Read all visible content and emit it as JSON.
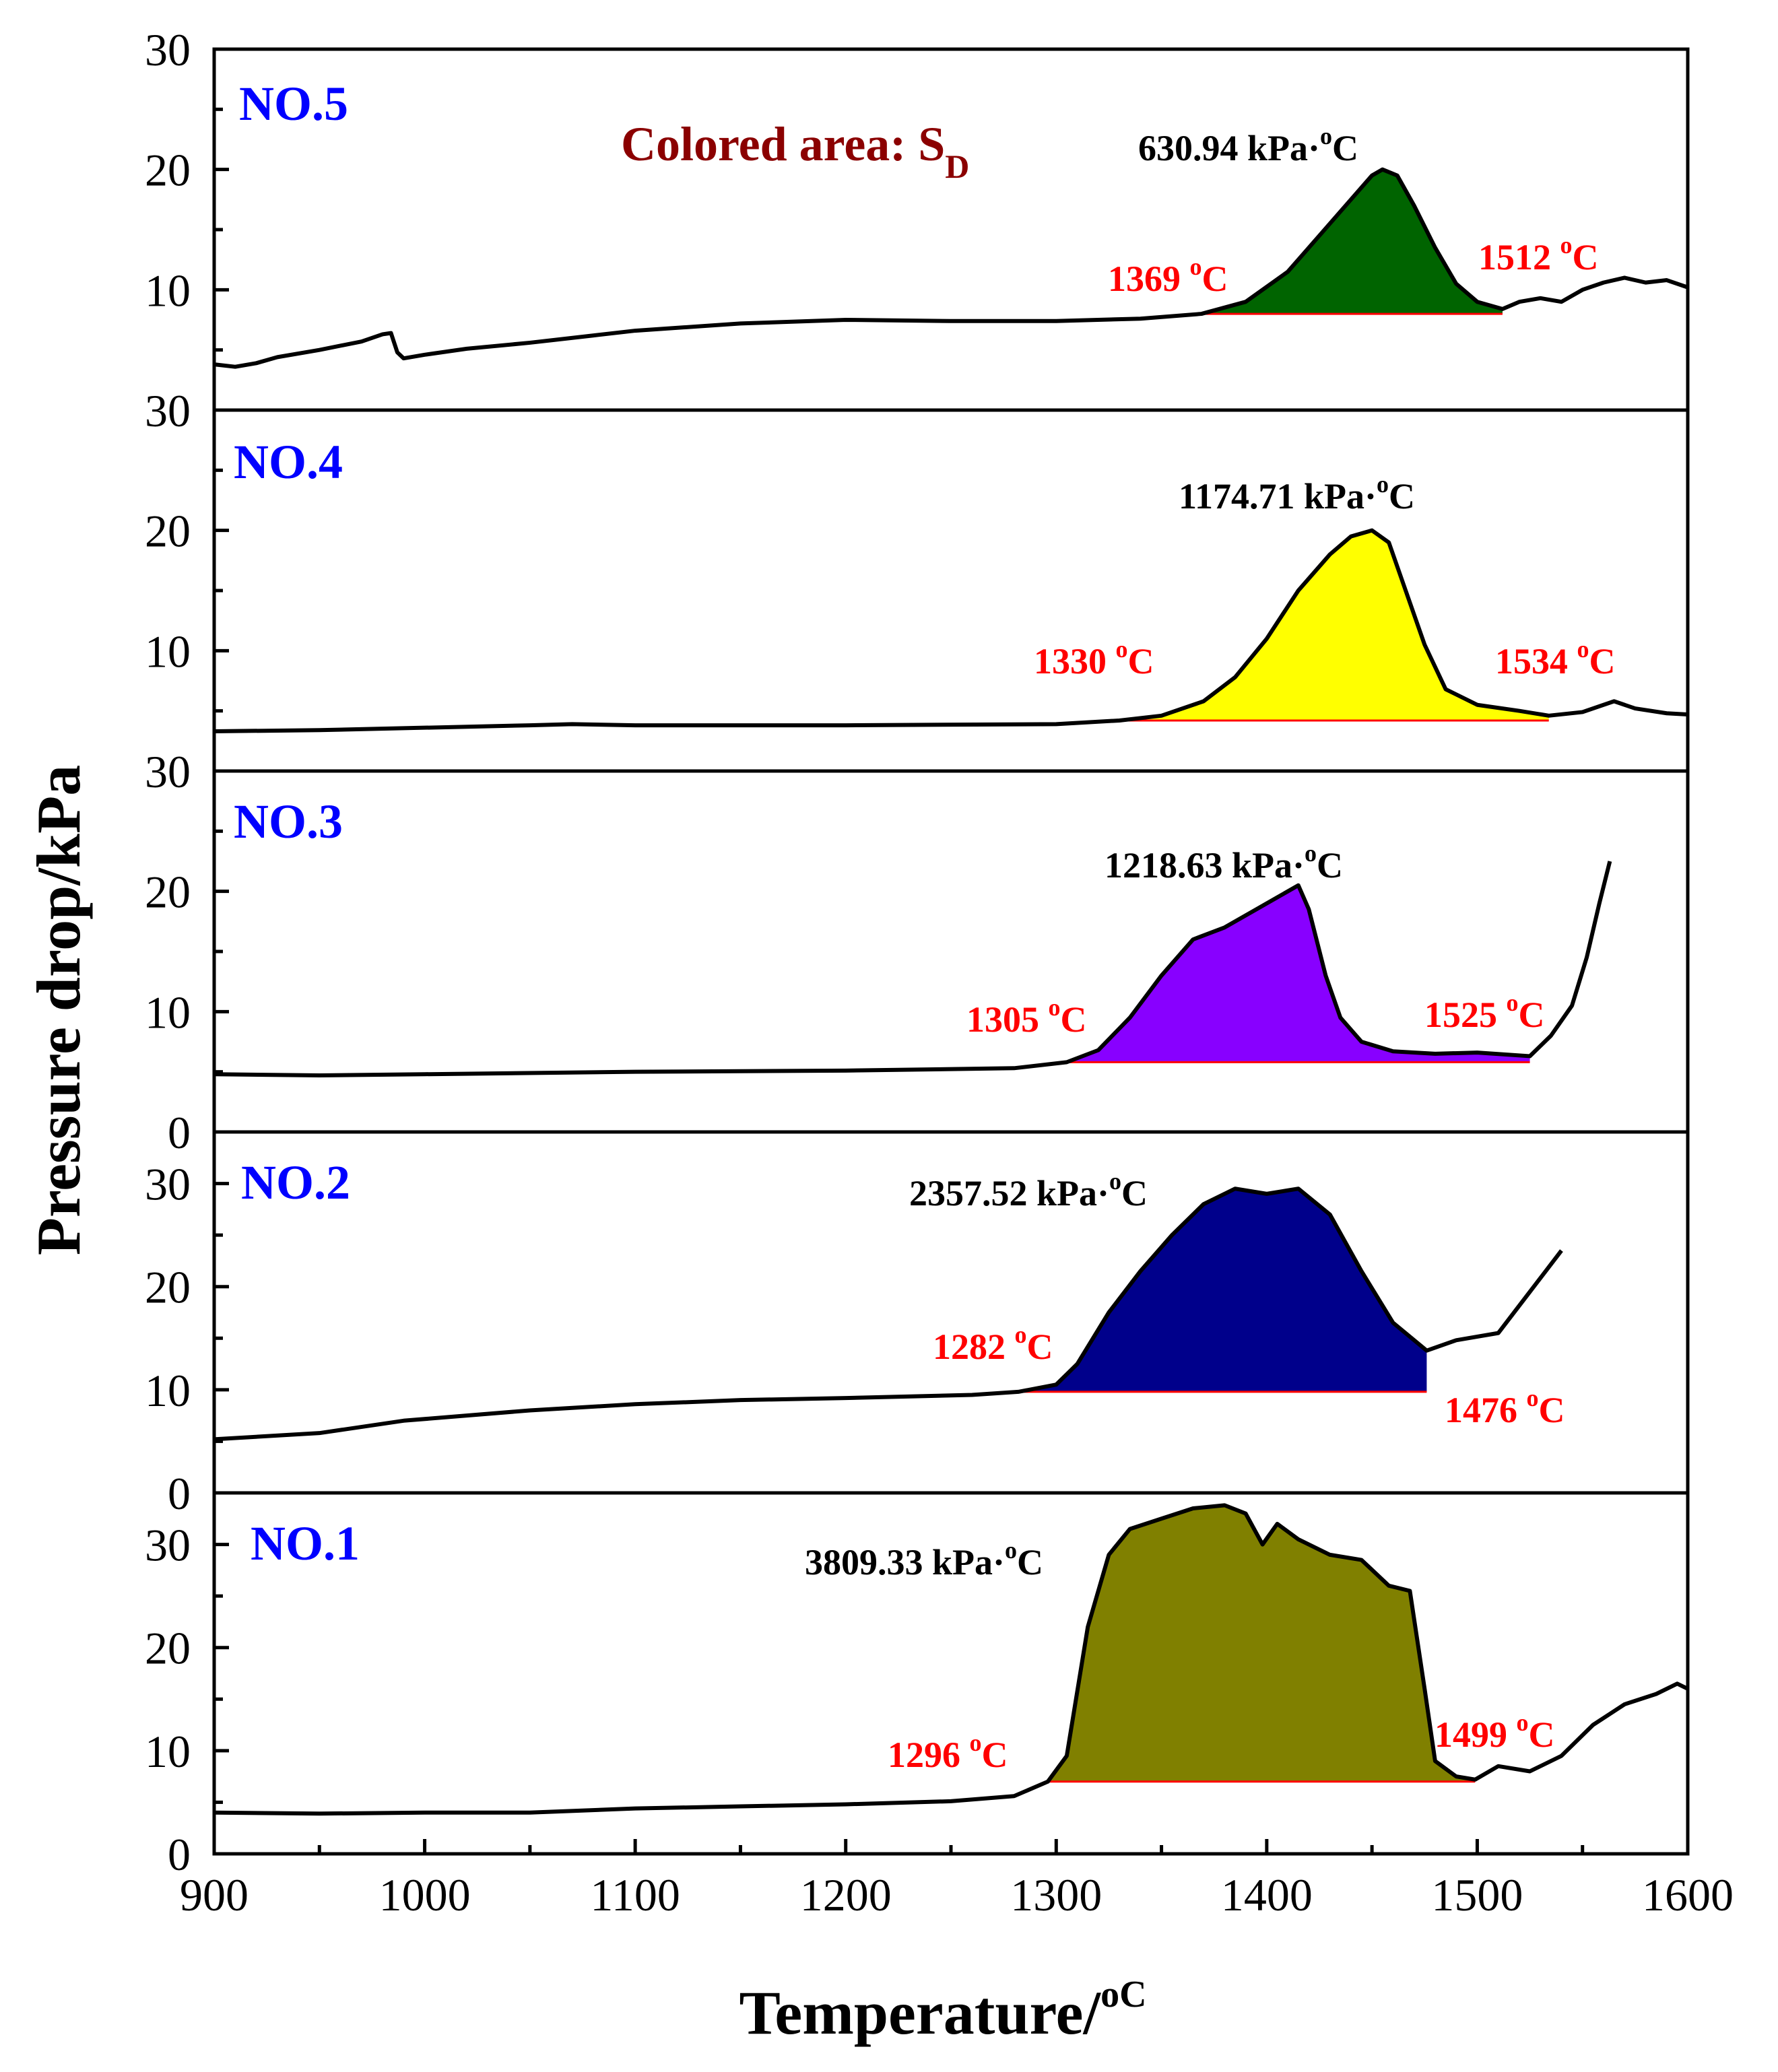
{
  "chart_data": {
    "type": "area",
    "xlabel": "Temperature/",
    "xlabel_unit": "oC",
    "ylabel": "Pressure drop/kPa",
    "xlim": [
      900,
      1600
    ],
    "x_ticks": [
      "900",
      "1000",
      "1100",
      "1200",
      "1300",
      "1400",
      "1500",
      "1600"
    ],
    "annotation": {
      "main": "Colored area: S",
      "sub": "D"
    },
    "colors": {
      "NO.5": "#006400",
      "NO.4": "#ffff00",
      "NO.3": "#8800ff",
      "NO.2": "#00008b",
      "NO.1": "#808000",
      "label_blue": "#0000ff",
      "temp_red": "#ff0000",
      "legend_brown": "#8b0000"
    },
    "panels": [
      {
        "name": "NO.5",
        "ylim": [
          0,
          30
        ],
        "y_ticks": [
          "30",
          "20",
          "10"
        ],
        "area_value": "630.94 kPa·°C",
        "area_value_text": "630.94 kPa·",
        "t_start": 1369,
        "t_end": 1512,
        "t_start_label": "1369 °C",
        "t_start_text": "1369 ",
        "t_end_text": "1512 ",
        "baseline": 8,
        "series": [
          [
            900,
            3.8
          ],
          [
            910,
            3.6
          ],
          [
            920,
            3.9
          ],
          [
            930,
            4.4
          ],
          [
            950,
            5.0
          ],
          [
            970,
            5.7
          ],
          [
            980,
            6.3
          ],
          [
            984,
            6.4
          ],
          [
            987,
            4.8
          ],
          [
            990,
            4.3
          ],
          [
            1000,
            4.6
          ],
          [
            1020,
            5.1
          ],
          [
            1050,
            5.6
          ],
          [
            1080,
            6.2
          ],
          [
            1100,
            6.6
          ],
          [
            1150,
            7.2
          ],
          [
            1200,
            7.5
          ],
          [
            1250,
            7.4
          ],
          [
            1300,
            7.4
          ],
          [
            1340,
            7.6
          ],
          [
            1369,
            8.0
          ],
          [
            1390,
            9.0
          ],
          [
            1410,
            11.5
          ],
          [
            1425,
            14.5
          ],
          [
            1440,
            17.5
          ],
          [
            1450,
            19.5
          ],
          [
            1455,
            20.0
          ],
          [
            1462,
            19.5
          ],
          [
            1470,
            17.0
          ],
          [
            1480,
            13.5
          ],
          [
            1490,
            10.5
          ],
          [
            1500,
            9.0
          ],
          [
            1512,
            8.4
          ],
          [
            1520,
            9.0
          ],
          [
            1530,
            9.3
          ],
          [
            1540,
            9.0
          ],
          [
            1550,
            10.0
          ],
          [
            1560,
            10.6
          ],
          [
            1570,
            11.0
          ],
          [
            1580,
            10.6
          ],
          [
            1590,
            10.8
          ],
          [
            1600,
            10.2
          ]
        ]
      },
      {
        "name": "NO.4",
        "ylim": [
          0,
          30
        ],
        "y_ticks": [
          "30",
          "20",
          "10"
        ],
        "area_value": "1174.71 kPa·°C",
        "area_value_text": "1174.71 kPa·",
        "t_start": 1330,
        "t_end": 1534,
        "t_start_label": "1330 °C",
        "t_start_text": "1330 ",
        "t_end_text": "1534 ",
        "baseline": 4.2,
        "series": [
          [
            900,
            3.3
          ],
          [
            950,
            3.4
          ],
          [
            1000,
            3.6
          ],
          [
            1050,
            3.8
          ],
          [
            1070,
            3.9
          ],
          [
            1100,
            3.8
          ],
          [
            1200,
            3.8
          ],
          [
            1300,
            3.9
          ],
          [
            1330,
            4.2
          ],
          [
            1350,
            4.6
          ],
          [
            1370,
            5.8
          ],
          [
            1385,
            7.8
          ],
          [
            1400,
            11.0
          ],
          [
            1415,
            15.0
          ],
          [
            1430,
            18.0
          ],
          [
            1440,
            19.5
          ],
          [
            1450,
            20.0
          ],
          [
            1458,
            19.0
          ],
          [
            1465,
            15.5
          ],
          [
            1475,
            10.5
          ],
          [
            1485,
            6.8
          ],
          [
            1500,
            5.5
          ],
          [
            1520,
            5.0
          ],
          [
            1534,
            4.6
          ],
          [
            1550,
            4.9
          ],
          [
            1565,
            5.8
          ],
          [
            1575,
            5.2
          ],
          [
            1590,
            4.8
          ],
          [
            1600,
            4.7
          ]
        ]
      },
      {
        "name": "NO.3",
        "ylim": [
          0,
          30
        ],
        "y_ticks": [
          "30",
          "20",
          "10",
          "0"
        ],
        "area_value": "1218.63 kPa·°C",
        "area_value_text": "1218.63 kPa·",
        "t_start": 1305,
        "t_end": 1525,
        "t_start_label": "1305 °C",
        "t_start_text": "1305 ",
        "t_end_text": "1525 ",
        "baseline": 5.8,
        "series": [
          [
            900,
            4.8
          ],
          [
            950,
            4.7
          ],
          [
            1000,
            4.8
          ],
          [
            1100,
            5.0
          ],
          [
            1200,
            5.1
          ],
          [
            1280,
            5.3
          ],
          [
            1305,
            5.8
          ],
          [
            1320,
            6.8
          ],
          [
            1335,
            9.5
          ],
          [
            1350,
            13.0
          ],
          [
            1365,
            16.0
          ],
          [
            1380,
            17.0
          ],
          [
            1395,
            18.5
          ],
          [
            1405,
            19.5
          ],
          [
            1415,
            20.5
          ],
          [
            1420,
            18.5
          ],
          [
            1428,
            13.0
          ],
          [
            1435,
            9.5
          ],
          [
            1445,
            7.5
          ],
          [
            1460,
            6.7
          ],
          [
            1480,
            6.5
          ],
          [
            1500,
            6.6
          ],
          [
            1525,
            6.3
          ],
          [
            1535,
            8.0
          ],
          [
            1545,
            10.5
          ],
          [
            1552,
            14.5
          ],
          [
            1558,
            19.0
          ],
          [
            1563,
            22.5
          ]
        ]
      },
      {
        "name": "NO.2",
        "ylim": [
          0,
          35
        ],
        "y_ticks": [
          "30",
          "20",
          "10",
          "0"
        ],
        "area_value": "2357.52 kPa·°C",
        "area_value_text": "2357.52 kPa·",
        "t_start": 1282,
        "t_end": 1476,
        "t_start_label": "1282 °C",
        "t_start_text": "1282 ",
        "t_end_text": "1476 ",
        "baseline": 9.8,
        "series": [
          [
            900,
            5.2
          ],
          [
            950,
            5.8
          ],
          [
            990,
            7.0
          ],
          [
            1050,
            8.0
          ],
          [
            1100,
            8.6
          ],
          [
            1150,
            9.0
          ],
          [
            1200,
            9.2
          ],
          [
            1260,
            9.5
          ],
          [
            1282,
            9.8
          ],
          [
            1300,
            10.5
          ],
          [
            1310,
            12.5
          ],
          [
            1325,
            17.5
          ],
          [
            1340,
            21.5
          ],
          [
            1355,
            25.0
          ],
          [
            1370,
            28.0
          ],
          [
            1385,
            29.5
          ],
          [
            1400,
            29.0
          ],
          [
            1415,
            29.5
          ],
          [
            1430,
            27.0
          ],
          [
            1445,
            21.5
          ],
          [
            1460,
            16.5
          ],
          [
            1476,
            13.8
          ],
          [
            1490,
            14.8
          ],
          [
            1510,
            15.5
          ],
          [
            1525,
            19.5
          ],
          [
            1540,
            23.5
          ]
        ]
      },
      {
        "name": "NO.1",
        "ylim": [
          0,
          35
        ],
        "y_ticks": [
          "30",
          "20",
          "10",
          "0"
        ],
        "area_value": "3809.33 kPa·°C",
        "area_value_text": "3809.33 kPa·",
        "t_start": 1296,
        "t_end": 1499,
        "t_start_label": "1296 °C",
        "t_start_text": "1296 ",
        "t_end_text": "1499 ",
        "baseline": 7.0,
        "series": [
          [
            900,
            4.0
          ],
          [
            950,
            3.9
          ],
          [
            1000,
            4.0
          ],
          [
            1050,
            4.0
          ],
          [
            1100,
            4.4
          ],
          [
            1150,
            4.6
          ],
          [
            1200,
            4.8
          ],
          [
            1250,
            5.1
          ],
          [
            1280,
            5.6
          ],
          [
            1296,
            7.0
          ],
          [
            1305,
            9.5
          ],
          [
            1315,
            22.0
          ],
          [
            1325,
            29.0
          ],
          [
            1335,
            31.5
          ],
          [
            1350,
            32.5
          ],
          [
            1365,
            33.5
          ],
          [
            1380,
            33.8
          ],
          [
            1390,
            33.0
          ],
          [
            1398,
            30.0
          ],
          [
            1405,
            32.0
          ],
          [
            1415,
            30.5
          ],
          [
            1430,
            29.0
          ],
          [
            1445,
            28.5
          ],
          [
            1458,
            26.0
          ],
          [
            1468,
            25.5
          ],
          [
            1475,
            16.0
          ],
          [
            1480,
            9.0
          ],
          [
            1490,
            7.5
          ],
          [
            1499,
            7.2
          ],
          [
            1510,
            8.5
          ],
          [
            1525,
            8.0
          ],
          [
            1540,
            9.5
          ],
          [
            1555,
            12.5
          ],
          [
            1570,
            14.5
          ],
          [
            1585,
            15.5
          ],
          [
            1595,
            16.5
          ],
          [
            1600,
            16.0
          ]
        ]
      }
    ]
  }
}
